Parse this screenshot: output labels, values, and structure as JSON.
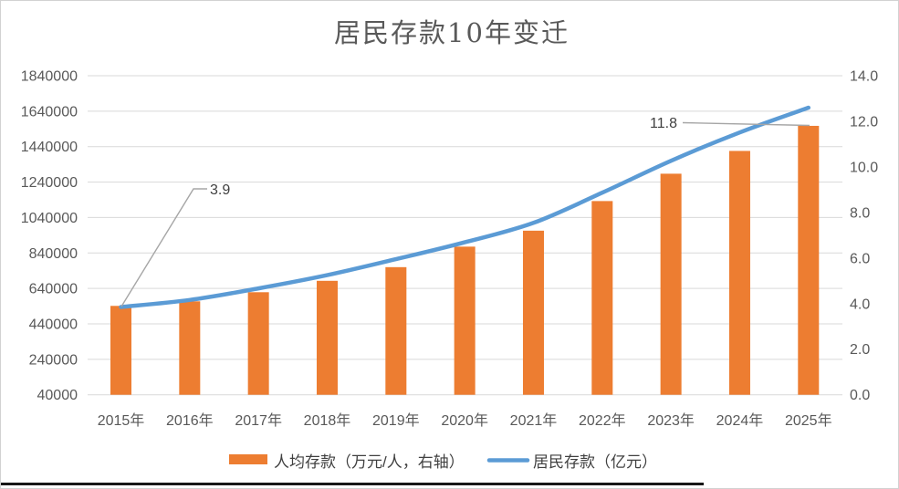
{
  "chart_data": {
    "type": "bar+line-dual-axis",
    "title": "居民存款10年变迁",
    "categories": [
      "2015年",
      "2016年",
      "2017年",
      "2018年",
      "2019年",
      "2020年",
      "2021年",
      "2022年",
      "2023年",
      "2024年",
      "2025年"
    ],
    "series": [
      {
        "name": "人均存款（万元/人，右轴）",
        "type": "bar",
        "axis": "right",
        "color": "#ED7D31",
        "values": [
          3.9,
          4.1,
          4.5,
          5.0,
          5.6,
          6.5,
          7.2,
          8.5,
          9.7,
          10.7,
          11.8
        ]
      },
      {
        "name": "居民存款（亿元）",
        "type": "line",
        "axis": "left",
        "color": "#5B9BD5",
        "values": [
          535000,
          575000,
          640000,
          715000,
          805000,
          900000,
          1010000,
          1180000,
          1360000,
          1520000,
          1660000
        ]
      }
    ],
    "left_axis": {
      "min": 40000,
      "max": 1840000,
      "step": 200000,
      "ticks": [
        "40000",
        "240000",
        "440000",
        "640000",
        "840000",
        "1040000",
        "1240000",
        "1440000",
        "1640000",
        "1840000"
      ]
    },
    "right_axis": {
      "min": 0,
      "max": 14,
      "step": 2,
      "ticks": [
        "0.0",
        "2.0",
        "4.0",
        "6.0",
        "8.0",
        "10.0",
        "12.0",
        "14.0"
      ]
    },
    "annotations": [
      {
        "text": "3.9",
        "category": "2015年",
        "series": "人均存款（万元/人，右轴）"
      },
      {
        "text": "11.8",
        "category": "2025年",
        "series": "人均存款（万元/人，右轴）"
      }
    ],
    "grid": true,
    "legend_position": "bottom",
    "colors": {
      "bar": "#ED7D31",
      "line": "#5B9BD5",
      "gridline": "#D9D9D9",
      "axis_text": "#595959",
      "title_text": "#595959",
      "annotation_text": "#404040",
      "leader_line": "#A6A6A6"
    }
  }
}
